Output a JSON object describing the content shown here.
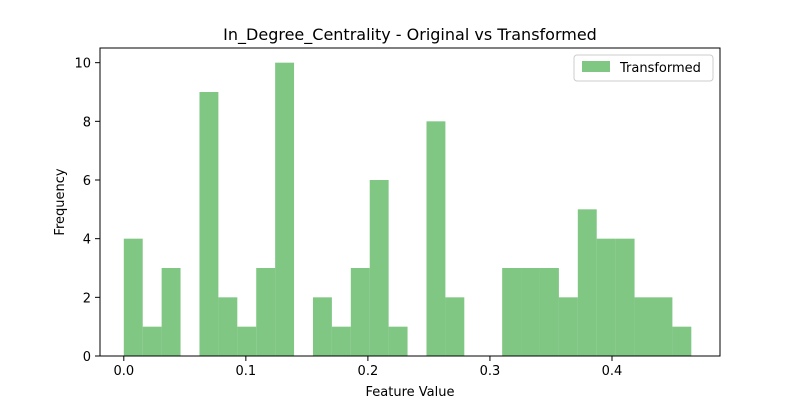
{
  "chart_data": {
    "type": "bar",
    "title": "In_Degree_Centrality - Original vs Transformed",
    "xlabel": "Feature Value",
    "ylabel": "Frequency",
    "xlim": [
      -0.0195,
      0.4885
    ],
    "ylim": [
      0,
      10.5
    ],
    "xticks": [
      {
        "value": 0.0,
        "label": "0.0"
      },
      {
        "value": 0.1,
        "label": "0.1"
      },
      {
        "value": 0.2,
        "label": "0.2"
      },
      {
        "value": 0.3,
        "label": "0.3"
      },
      {
        "value": 0.4,
        "label": "0.4"
      }
    ],
    "yticks": [
      {
        "value": 0,
        "label": "0"
      },
      {
        "value": 2,
        "label": "2"
      },
      {
        "value": 4,
        "label": "4"
      },
      {
        "value": 6,
        "label": "6"
      },
      {
        "value": 8,
        "label": "8"
      },
      {
        "value": 10,
        "label": "10"
      }
    ],
    "grid": false,
    "legend_position": "top-right",
    "series": [
      {
        "name": "Transformed",
        "color": "#4caf50",
        "opacity": 0.7,
        "bin_start": 0.0,
        "bin_width": 0.0155,
        "values": [
          4,
          1,
          3,
          0,
          9,
          2,
          1,
          3,
          10,
          0,
          2,
          1,
          3,
          6,
          1,
          0,
          8,
          2,
          0,
          0,
          3,
          3,
          3,
          2,
          5,
          4,
          4,
          2,
          2,
          1
        ]
      }
    ]
  }
}
